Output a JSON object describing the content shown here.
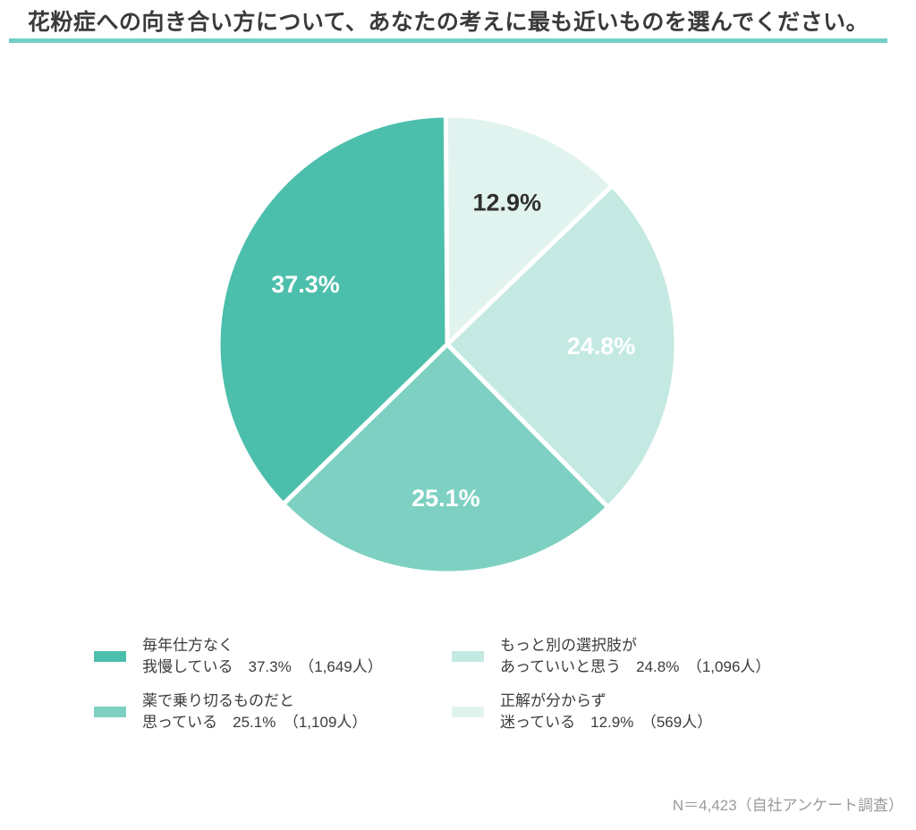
{
  "title": "花粉症への向き合い方について、あなたの考えに最も近いものを選んでください。",
  "title_rule_color": "#73cfc3",
  "chart_data": {
    "type": "pie",
    "title": "花粉症への向き合い方について、あなたの考えに最も近いものを選んでください。",
    "n_total": 4423,
    "start_angle": "top",
    "direction": "counterclockwise",
    "slice_gap_color": "#ffffff",
    "slices": [
      {
        "label": "毎年仕方なく我慢している",
        "pct": 37.3,
        "count": 1649,
        "color": "#4cbfac",
        "pct_label_color": "#ffffff"
      },
      {
        "label": "薬で乗り切るものだと思っている",
        "pct": 25.1,
        "count": 1109,
        "color": "#7ed1c2",
        "pct_label_color": "#ffffff"
      },
      {
        "label": "もっと別の選択肢があっていいと思う",
        "pct": 24.8,
        "count": 1096,
        "color": "#c4e9e2",
        "pct_label_color": "#ffffff"
      },
      {
        "label": "正解が分からず迷っている",
        "pct": 12.9,
        "count": 569,
        "color": "#e1f3ef",
        "pct_label_color": "#2f2f2f"
      }
    ]
  },
  "legend": {
    "items": [
      {
        "line1": "毎年仕方なく",
        "line2": "我慢している　37.3%　（1,649人）",
        "color": "#4cbfac"
      },
      {
        "line1": "薬で乗り切るものだと",
        "line2": "思っている　25.1%　（1,109人）",
        "color": "#7ed1c2"
      },
      {
        "line1": "もっと別の選択肢が",
        "line2": "あっていいと思う　24.8%　（1,096人）",
        "color": "#c4e9e2"
      },
      {
        "line1": "正解が分からず",
        "line2": "迷っている　12.9%　（569人）",
        "color": "#e1f3ef"
      }
    ]
  },
  "footnote": "N＝4,423（自社アンケート調査）"
}
